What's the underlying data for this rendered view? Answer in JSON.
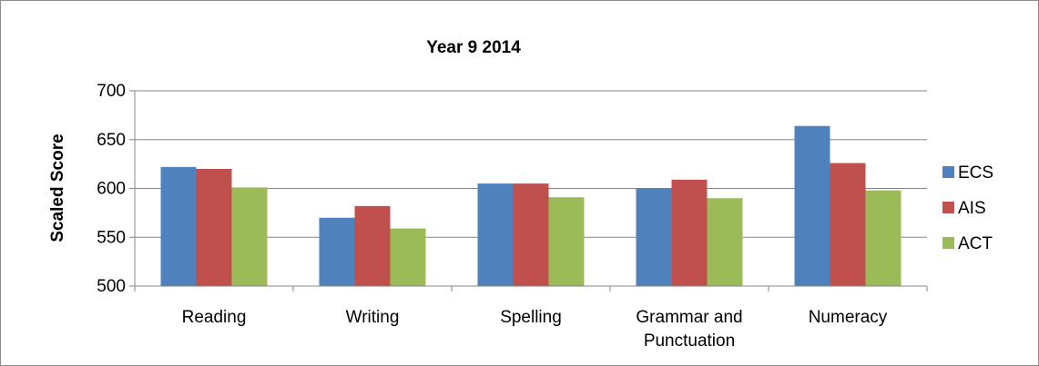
{
  "chart_data": {
    "type": "bar",
    "title": "Year 9 2014",
    "xlabel": "",
    "ylabel": "Scaled Score",
    "ylim": [
      500,
      700
    ],
    "yticks": [
      500,
      550,
      600,
      650,
      700
    ],
    "grid": true,
    "legend_position": "right",
    "categories": [
      [
        "Reading"
      ],
      [
        "Writing"
      ],
      [
        "Spelling"
      ],
      [
        "Grammar and",
        "Punctuation"
      ],
      [
        "Numeracy"
      ]
    ],
    "series": [
      {
        "name": "ECS",
        "color": "#4f81bd",
        "values": [
          622,
          570,
          605,
          600,
          664
        ]
      },
      {
        "name": "AIS",
        "color": "#c0504d",
        "values": [
          620,
          582,
          605,
          609,
          626
        ]
      },
      {
        "name": "ACT",
        "color": "#9bbb59",
        "values": [
          601,
          559,
          591,
          590,
          598
        ]
      }
    ]
  }
}
